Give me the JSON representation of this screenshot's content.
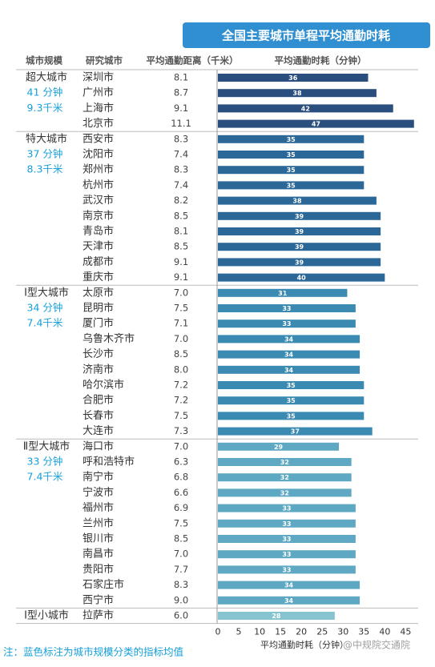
{
  "chart_data": {
    "type": "bar",
    "title": "全国主要城市单程平均通勤时耗",
    "headers": [
      "城市规模",
      "研究城市",
      "平均通勤距离（千米）",
      "平均通勤时耗（分钟）"
    ],
    "groups": [
      {
        "name": "超大城市",
        "avg_time": "41 分钟",
        "avg_distance": "9.3千米",
        "color": "#2a4f7e",
        "cities": [
          {
            "name": "深圳市",
            "distance": "8.1",
            "time": 36
          },
          {
            "name": "广州市",
            "distance": "8.7",
            "time": 38
          },
          {
            "name": "上海市",
            "distance": "9.1",
            "time": 42
          },
          {
            "name": "北京市",
            "distance": "11.1",
            "time": 47
          }
        ]
      },
      {
        "name": "特大城市",
        "avg_time": "37 分钟",
        "avg_distance": "8.3千米",
        "color": "#2c6897",
        "cities": [
          {
            "name": "西安市",
            "distance": "8.3",
            "time": 35
          },
          {
            "name": "沈阳市",
            "distance": "7.4",
            "time": 35
          },
          {
            "name": "郑州市",
            "distance": "8.3",
            "time": 35
          },
          {
            "name": "杭州市",
            "distance": "7.4",
            "time": 35
          },
          {
            "name": "武汉市",
            "distance": "8.2",
            "time": 38
          },
          {
            "name": "南京市",
            "distance": "8.5",
            "time": 39
          },
          {
            "name": "青岛市",
            "distance": "8.1",
            "time": 39
          },
          {
            "name": "天津市",
            "distance": "8.5",
            "time": 39
          },
          {
            "name": "成都市",
            "distance": "9.1",
            "time": 39
          },
          {
            "name": "重庆市",
            "distance": "9.1",
            "time": 40
          }
        ]
      },
      {
        "name": "Ⅰ型大城市",
        "avg_time": "34 分钟",
        "avg_distance": "7.4千米",
        "color": "#3a8ab2",
        "cities": [
          {
            "name": "太原市",
            "distance": "7.0",
            "time": 31
          },
          {
            "name": "昆明市",
            "distance": "7.5",
            "time": 33
          },
          {
            "name": "厦门市",
            "distance": "7.1",
            "time": 33
          },
          {
            "name": "乌鲁木齐市",
            "distance": "7.0",
            "time": 34
          },
          {
            "name": "长沙市",
            "distance": "8.5",
            "time": 34
          },
          {
            "name": "济南市",
            "distance": "8.0",
            "time": 34
          },
          {
            "name": "哈尔滨市",
            "distance": "7.2",
            "time": 35
          },
          {
            "name": "合肥市",
            "distance": "7.2",
            "time": 35
          },
          {
            "name": "长春市",
            "distance": "7.5",
            "time": 35
          },
          {
            "name": "大连市",
            "distance": "7.3",
            "time": 37
          }
        ]
      },
      {
        "name": "Ⅱ型大城市",
        "avg_time": "33 分钟",
        "avg_distance": "7.4千米",
        "color": "#5ea8c3",
        "cities": [
          {
            "name": "海口市",
            "distance": "7.0",
            "time": 29
          },
          {
            "name": "呼和浩特市",
            "distance": "6.3",
            "time": 32
          },
          {
            "name": "南宁市",
            "distance": "6.8",
            "time": 32
          },
          {
            "name": "宁波市",
            "distance": "6.6",
            "time": 32
          },
          {
            "name": "福州市",
            "distance": "6.9",
            "time": 33
          },
          {
            "name": "兰州市",
            "distance": "7.5",
            "time": 33
          },
          {
            "name": "银川市",
            "distance": "8.5",
            "time": 33
          },
          {
            "name": "南昌市",
            "distance": "7.0",
            "time": 33
          },
          {
            "name": "贵阳市",
            "distance": "7.7",
            "time": 33
          },
          {
            "name": "石家庄市",
            "distance": "8.3",
            "time": 34
          },
          {
            "name": "西宁市",
            "distance": "9.0",
            "time": 34
          }
        ]
      },
      {
        "name": "Ⅰ型小城市",
        "color": "#86c4cf",
        "cities": [
          {
            "name": "拉萨市",
            "distance": "6.0",
            "time": 28
          }
        ]
      }
    ],
    "xlim": [
      0,
      48
    ],
    "xticks": [
      0,
      5,
      10,
      15,
      20,
      25,
      30,
      35,
      40,
      45
    ],
    "xlabel": "平均通勤时耗（分钟）",
    "watermark": "@中规院交通院",
    "note": "注：蓝色标注为城市规模分类的指标均值"
  }
}
